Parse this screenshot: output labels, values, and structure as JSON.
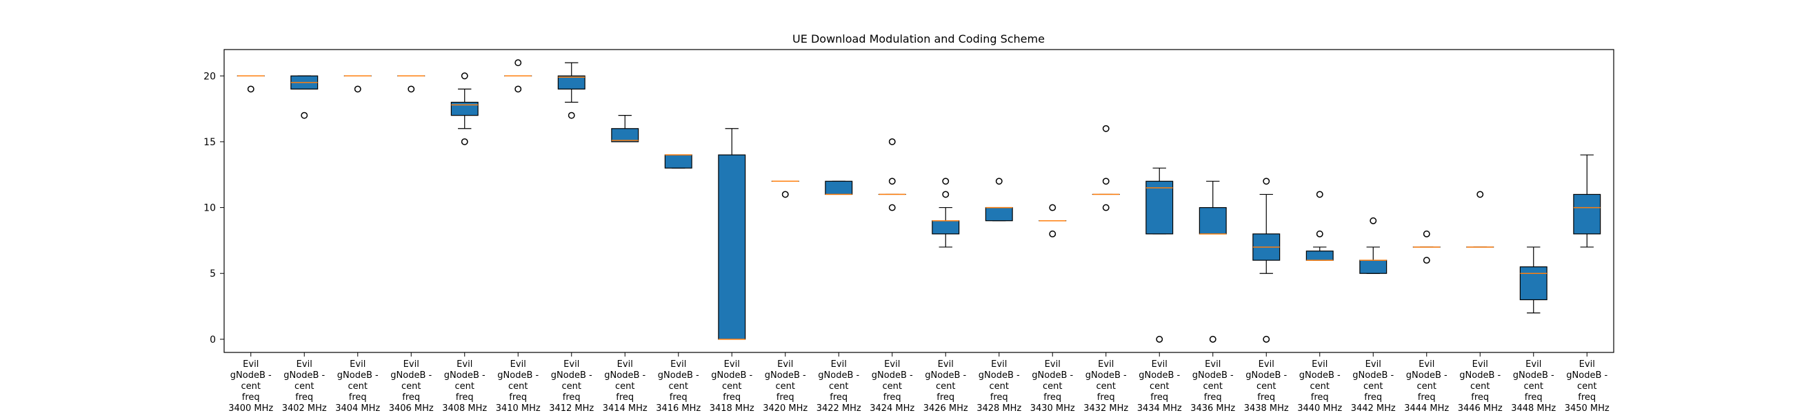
{
  "chart_data": {
    "type": "box",
    "title": "UE Download Modulation and Coding Scheme",
    "xlabel": "",
    "ylabel": "",
    "ylim": [
      -1,
      22
    ],
    "yticks": [
      0,
      5,
      10,
      15,
      20
    ],
    "grid": false,
    "colors": {
      "box_fill": "#1f77b4",
      "median": "#ff7f0e",
      "whisker": "#000000",
      "flier": "#000000"
    },
    "categories": [
      [
        "Evil",
        "gNodeB -",
        "cent",
        "freq",
        "3400 MHz"
      ],
      [
        "Evil",
        "gNodeB -",
        "cent",
        "freq",
        "3402 MHz"
      ],
      [
        "Evil",
        "gNodeB -",
        "cent",
        "freq",
        "3404 MHz"
      ],
      [
        "Evil",
        "gNodeB -",
        "cent",
        "freq",
        "3406 MHz"
      ],
      [
        "Evil",
        "gNodeB -",
        "cent",
        "freq",
        "3408 MHz"
      ],
      [
        "Evil",
        "gNodeB -",
        "cent",
        "freq",
        "3410 MHz"
      ],
      [
        "Evil",
        "gNodeB -",
        "cent",
        "freq",
        "3412 MHz"
      ],
      [
        "Evil",
        "gNodeB -",
        "cent",
        "freq",
        "3414 MHz"
      ],
      [
        "Evil",
        "gNodeB -",
        "cent",
        "freq",
        "3416 MHz"
      ],
      [
        "Evil",
        "gNodeB -",
        "cent",
        "freq",
        "3418 MHz"
      ],
      [
        "Evil",
        "gNodeB -",
        "cent",
        "freq",
        "3420 MHz"
      ],
      [
        "Evil",
        "gNodeB -",
        "cent",
        "freq",
        "3422 MHz"
      ],
      [
        "Evil",
        "gNodeB -",
        "cent",
        "freq",
        "3424 MHz"
      ],
      [
        "Evil",
        "gNodeB -",
        "cent",
        "freq",
        "3426 MHz"
      ],
      [
        "Evil",
        "gNodeB -",
        "cent",
        "freq",
        "3428 MHz"
      ],
      [
        "Evil",
        "gNodeB -",
        "cent",
        "freq",
        "3430 MHz"
      ],
      [
        "Evil",
        "gNodeB -",
        "cent",
        "freq",
        "3432 MHz"
      ],
      [
        "Evil",
        "gNodeB -",
        "cent",
        "freq",
        "3434 MHz"
      ],
      [
        "Evil",
        "gNodeB -",
        "cent",
        "freq",
        "3436 MHz"
      ],
      [
        "Evil",
        "gNodeB -",
        "cent",
        "freq",
        "3438 MHz"
      ],
      [
        "Evil",
        "gNodeB -",
        "cent",
        "freq",
        "3440 MHz"
      ],
      [
        "Evil",
        "gNodeB -",
        "cent",
        "freq",
        "3442 MHz"
      ],
      [
        "Evil",
        "gNodeB -",
        "cent",
        "freq",
        "3444 MHz"
      ],
      [
        "Evil",
        "gNodeB -",
        "cent",
        "freq",
        "3446 MHz"
      ],
      [
        "Evil",
        "gNodeB -",
        "cent",
        "freq",
        "3448 MHz"
      ],
      [
        "Evil",
        "gNodeB -",
        "cent",
        "freq",
        "3450 MHz"
      ]
    ],
    "boxes": [
      {
        "q1": 20,
        "median": 20,
        "q3": 20,
        "whislo": 20,
        "whishi": 20,
        "fliers": [
          19
        ]
      },
      {
        "q1": 19,
        "median": 19.5,
        "q3": 20,
        "whislo": 19,
        "whishi": 20,
        "fliers": [
          17
        ]
      },
      {
        "q1": 20,
        "median": 20,
        "q3": 20,
        "whislo": 20,
        "whishi": 20,
        "fliers": [
          19
        ]
      },
      {
        "q1": 20,
        "median": 20,
        "q3": 20,
        "whislo": 20,
        "whishi": 20,
        "fliers": [
          19
        ]
      },
      {
        "q1": 17,
        "median": 17.8,
        "q3": 18,
        "whislo": 16,
        "whishi": 19,
        "fliers": [
          15,
          20
        ]
      },
      {
        "q1": 20,
        "median": 20,
        "q3": 20,
        "whislo": 20,
        "whishi": 20,
        "fliers": [
          19,
          21
        ]
      },
      {
        "q1": 19,
        "median": 19.9,
        "q3": 20,
        "whislo": 18,
        "whishi": 21,
        "fliers": [
          17
        ]
      },
      {
        "q1": 15,
        "median": 15.1,
        "q3": 16,
        "whislo": 15,
        "whishi": 17,
        "fliers": []
      },
      {
        "q1": 13,
        "median": 14,
        "q3": 14,
        "whislo": 13,
        "whishi": 14,
        "fliers": []
      },
      {
        "q1": 0,
        "median": 0,
        "q3": 14,
        "whislo": 0,
        "whishi": 16,
        "fliers": []
      },
      {
        "q1": 12,
        "median": 12,
        "q3": 12,
        "whislo": 12,
        "whishi": 12,
        "fliers": [
          11
        ]
      },
      {
        "q1": 11,
        "median": 11,
        "q3": 12,
        "whislo": 11,
        "whishi": 12,
        "fliers": []
      },
      {
        "q1": 11,
        "median": 11,
        "q3": 11,
        "whislo": 11,
        "whishi": 11,
        "fliers": [
          10,
          12,
          15
        ]
      },
      {
        "q1": 8,
        "median": 9,
        "q3": 9,
        "whislo": 7,
        "whishi": 10,
        "fliers": [
          11,
          12
        ]
      },
      {
        "q1": 9,
        "median": 10,
        "q3": 10,
        "whislo": 9,
        "whishi": 10,
        "fliers": [
          12
        ]
      },
      {
        "q1": 9,
        "median": 9,
        "q3": 9,
        "whislo": 9,
        "whishi": 9,
        "fliers": [
          8,
          10
        ]
      },
      {
        "q1": 11,
        "median": 11,
        "q3": 11,
        "whislo": 11,
        "whishi": 11,
        "fliers": [
          10,
          12,
          16
        ]
      },
      {
        "q1": 8,
        "median": 11.5,
        "q3": 12,
        "whislo": 8,
        "whishi": 13,
        "fliers": [
          0
        ]
      },
      {
        "q1": 8,
        "median": 8,
        "q3": 10,
        "whislo": 8,
        "whishi": 12,
        "fliers": [
          0
        ]
      },
      {
        "q1": 6,
        "median": 7,
        "q3": 8,
        "whislo": 5,
        "whishi": 11,
        "fliers": [
          0,
          12
        ]
      },
      {
        "q1": 6,
        "median": 6,
        "q3": 6.7,
        "whislo": 6,
        "whishi": 7,
        "fliers": [
          8,
          11
        ]
      },
      {
        "q1": 5,
        "median": 6,
        "q3": 6,
        "whislo": 5,
        "whishi": 7,
        "fliers": [
          9
        ]
      },
      {
        "q1": 7,
        "median": 7,
        "q3": 7,
        "whislo": 7,
        "whishi": 7,
        "fliers": [
          6,
          8
        ]
      },
      {
        "q1": 7,
        "median": 7,
        "q3": 7,
        "whislo": 7,
        "whishi": 7,
        "fliers": [
          11
        ]
      },
      {
        "q1": 3,
        "median": 5,
        "q3": 5.5,
        "whislo": 2,
        "whishi": 7,
        "fliers": []
      },
      {
        "q1": 8,
        "median": 10,
        "q3": 11,
        "whislo": 7,
        "whishi": 14,
        "fliers": []
      }
    ]
  }
}
